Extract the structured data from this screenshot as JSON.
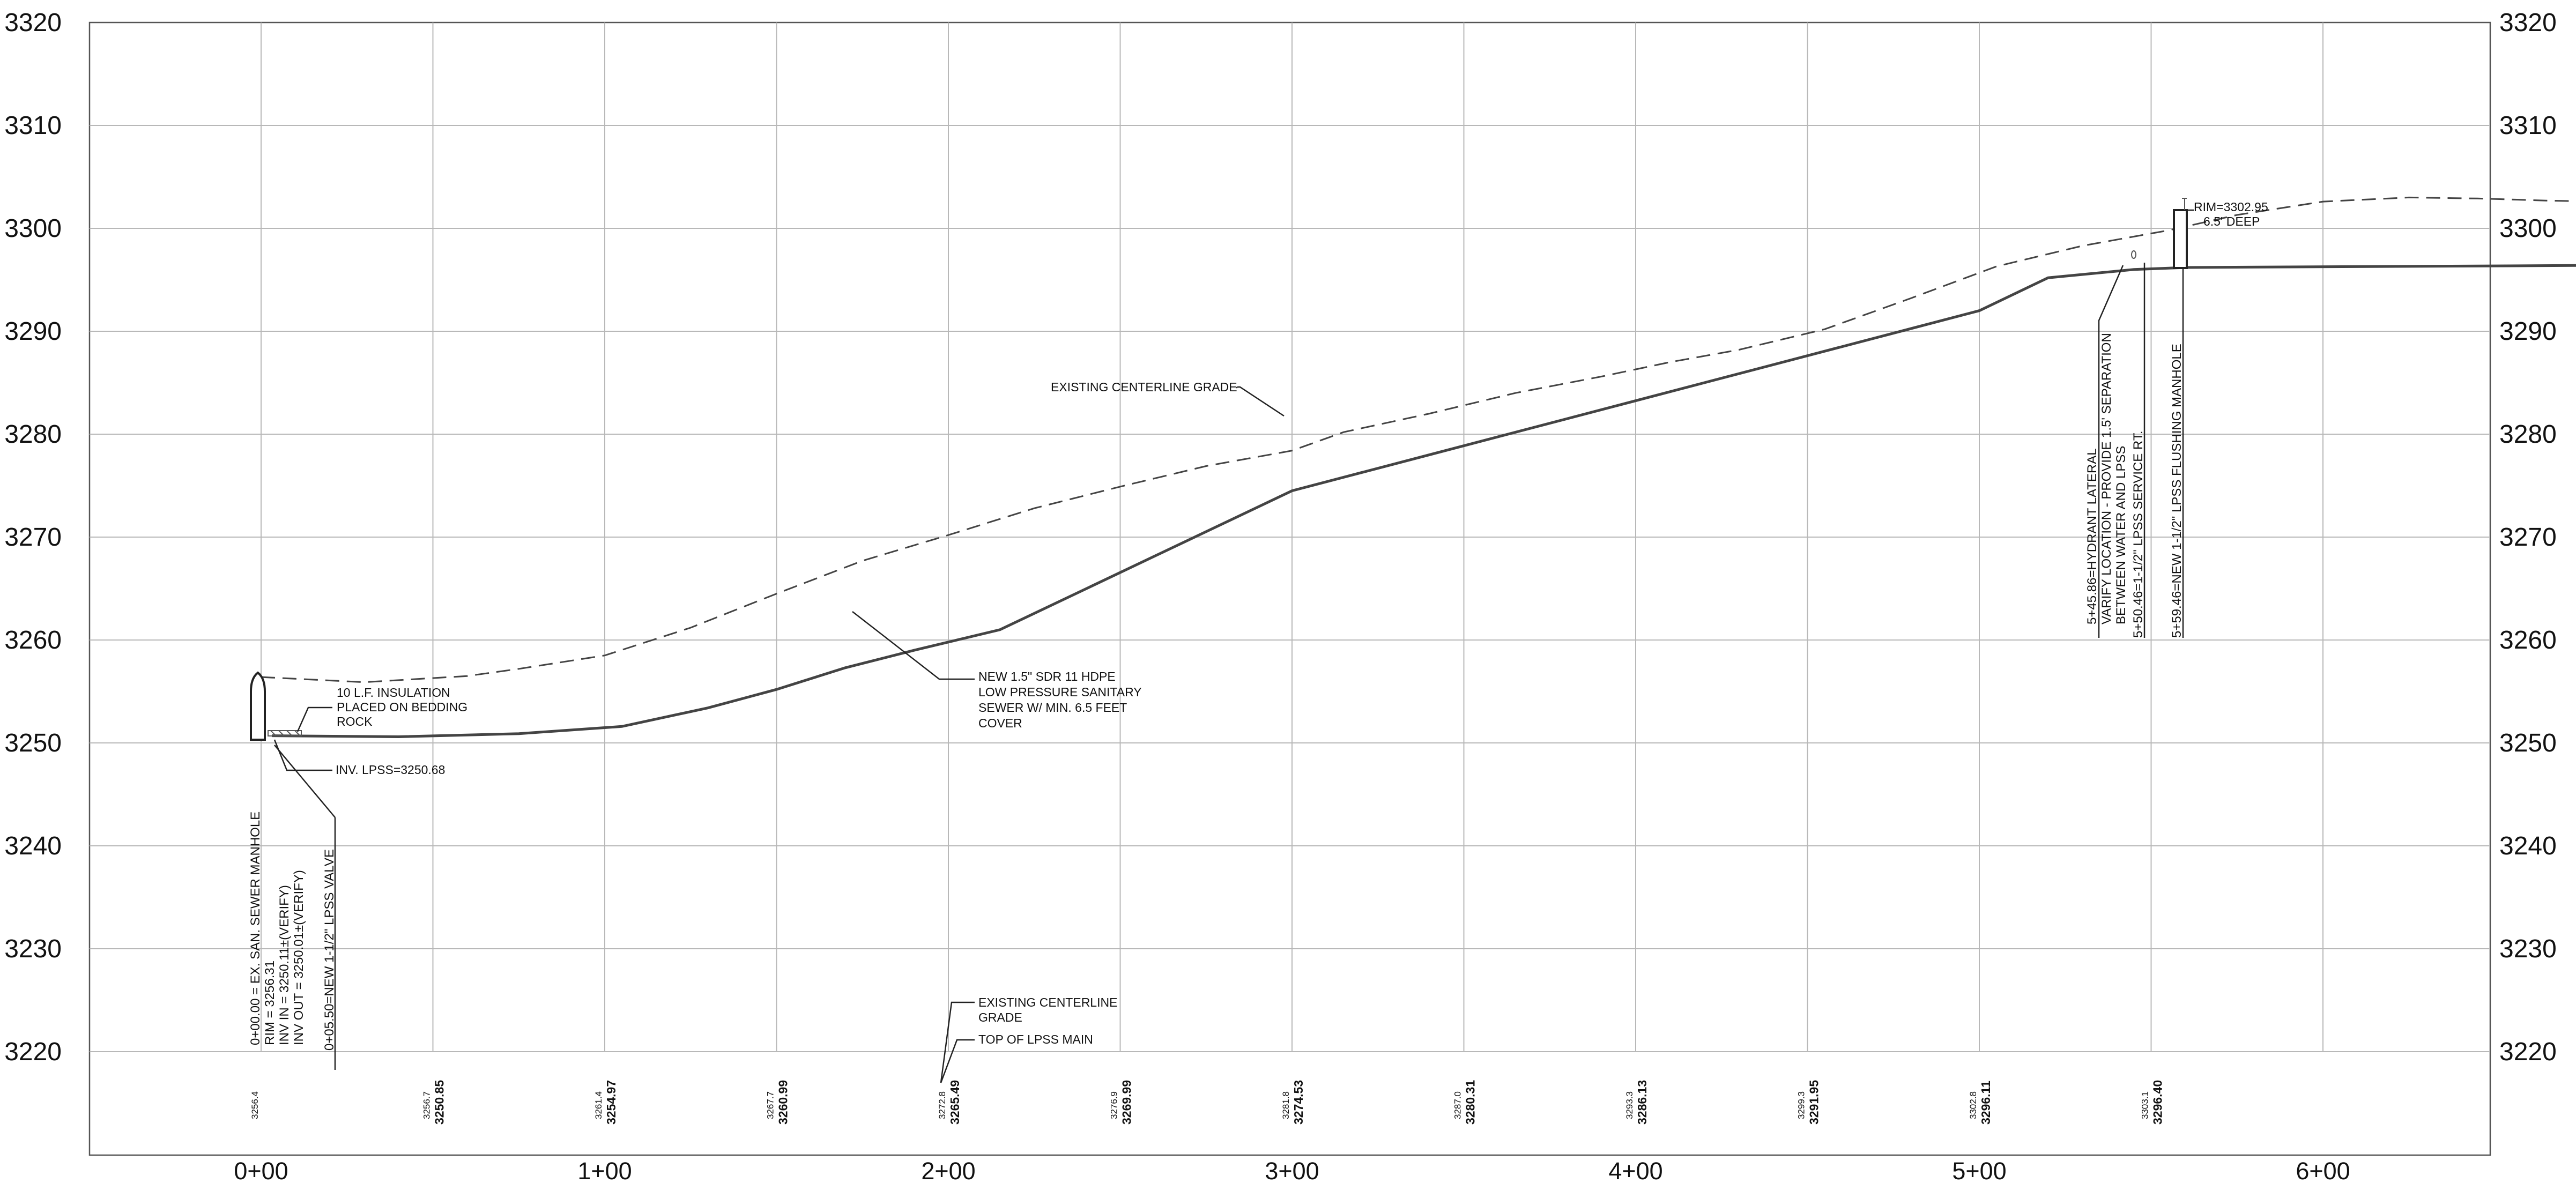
{
  "profile": {
    "elevation_labels": [
      "3320",
      "3310",
      "3300",
      "3290",
      "3280",
      "3270",
      "3260",
      "3250",
      "3240",
      "3230",
      "3220"
    ],
    "station_labels": [
      "0+00",
      "1+00",
      "2+00",
      "3+00",
      "4+00",
      "5+00",
      "6+00"
    ],
    "grade_elevations": [
      {
        "existing": "3256.4",
        "pipe": ""
      },
      {
        "existing": "3256.7",
        "pipe": "3250.85"
      },
      {
        "existing": "3261.4",
        "pipe": "3254.97"
      },
      {
        "existing": "3267.7",
        "pipe": "3260.99"
      },
      {
        "existing": "3272.8",
        "pipe": "3265.49"
      },
      {
        "existing": "3276.9",
        "pipe": "3269.99"
      },
      {
        "existing": "3281.8",
        "pipe": "3274.53"
      },
      {
        "existing": "3287.0",
        "pipe": "3280.31"
      },
      {
        "existing": "3293.3",
        "pipe": "3286.13"
      },
      {
        "existing": "3299.3",
        "pipe": "3291.95"
      },
      {
        "existing": "3302.8",
        "pipe": "3296.11"
      },
      {
        "existing": "3303.1",
        "pipe": "3296.40"
      }
    ],
    "existing_grade_points": [
      [
        0,
        3256.4
      ],
      [
        30,
        3255.9
      ],
      [
        60,
        3256.5
      ],
      [
        75,
        3257.2
      ],
      [
        100,
        3258.5
      ],
      [
        125,
        3261.2
      ],
      [
        150,
        3264.5
      ],
      [
        175,
        3267.7
      ],
      [
        200,
        3270.2
      ],
      [
        225,
        3272.8
      ],
      [
        250,
        3274.9
      ],
      [
        275,
        3276.9
      ],
      [
        300,
        3278.4
      ],
      [
        315,
        3280.2
      ],
      [
        340,
        3282.0
      ],
      [
        365,
        3284.0
      ],
      [
        390,
        3285.6
      ],
      [
        410,
        3287.0
      ],
      [
        430,
        3288.2
      ],
      [
        455,
        3290.2
      ],
      [
        480,
        3293.2
      ],
      [
        505,
        3296.3
      ],
      [
        530,
        3298.3
      ],
      [
        555,
        3299.8
      ],
      [
        575,
        3301.3
      ],
      [
        600,
        3302.6
      ],
      [
        625,
        3303.0
      ],
      [
        645,
        3302.9
      ],
      [
        655,
        3302.8
      ],
      [
        665,
        3302.7
      ],
      [
        680,
        3302.6
      ]
    ]
  },
  "pipe_profile_points": [
    [
      0,
      3250.7
    ],
    [
      40,
      3250.6
    ],
    [
      75,
      3250.9
    ],
    [
      105,
      3251.6
    ],
    [
      130,
      3253.4
    ],
    [
      150,
      3255.2
    ],
    [
      170,
      3257.3
    ],
    [
      190,
      3259.0
    ],
    [
      215,
      3261.0
    ],
    [
      300,
      3274.5
    ],
    [
      500,
      3292.0
    ],
    [
      520,
      3295.2
    ],
    [
      545,
      3296.0
    ],
    [
      560,
      3296.2
    ],
    [
      680,
      3296.4
    ]
  ],
  "annotations": {
    "existing_grade": "EXISTING CENTERLINE GRADE",
    "pipe_label": [
      "NEW 1.5\" SDR 11 HDPE",
      "LOW PRESSURE SANITARY",
      "SEWER W/ MIN. 6.5 FEET",
      "COVER"
    ],
    "insulation": [
      "10 L.F. INSULATION",
      "PLACED ON BEDDING",
      "ROCK"
    ],
    "invert": "INV. LPSS=3250.68",
    "manhole_start": [
      "0+00.00 = EX. SAN. SEWER MANHOLE",
      "RIM = 3256.31",
      "INV IN = 3250.11±(VERIFY)",
      "INV OUT = 3250.01±(VERIFY)"
    ],
    "valve": "0+05.50=NEW 1-1/2\" LPSS VALVE",
    "hydrant": [
      "5+45.86=HYDRANT LATERAL",
      "VARIFY LOCATION - PROVIDE 1.5' SEPARATION",
      "BETWEEN WATER AND LPSS"
    ],
    "service": "5+50.46=1-1/2\" LPSS SERVICE RT.",
    "flushing": "5+59.46=NEW 1-1/2\" LPSS FLUSHING MANHOLE",
    "rim": [
      "RIM=3302.95",
      "6.5' DEEP"
    ],
    "legend_existing": [
      "EXISTING CENTERLINE",
      "GRADE"
    ],
    "legend_pipe": "TOP OF LPSS MAIN"
  }
}
